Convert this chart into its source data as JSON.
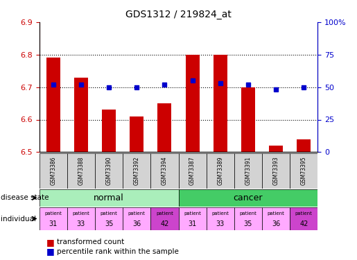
{
  "title": "GDS1312 / 219824_at",
  "samples": [
    "GSM73386",
    "GSM73388",
    "GSM73390",
    "GSM73392",
    "GSM73394",
    "GSM73387",
    "GSM73389",
    "GSM73391",
    "GSM73393",
    "GSM73395"
  ],
  "transformed_count": [
    6.79,
    6.73,
    6.63,
    6.61,
    6.65,
    6.8,
    6.8,
    6.7,
    6.52,
    6.54
  ],
  "percentile_rank": [
    52,
    52,
    50,
    50,
    52,
    55,
    53,
    52,
    48,
    50
  ],
  "ylim": [
    6.5,
    6.9
  ],
  "yticks_left": [
    6.5,
    6.6,
    6.7,
    6.8,
    6.9
  ],
  "yticks_right": [
    0,
    25,
    50,
    75,
    100
  ],
  "bar_color": "#cc0000",
  "dot_color": "#0000cc",
  "individuals": [
    31,
    33,
    35,
    36,
    42,
    31,
    33,
    35,
    36,
    42
  ],
  "normal_color": "#aaeebb",
  "cancer_color": "#44cc66",
  "ind_colors": [
    "#ffaaff",
    "#ffaaff",
    "#ffaaff",
    "#ffaaff",
    "#cc44cc",
    "#ffaaff",
    "#ffaaff",
    "#ffaaff",
    "#ffaaff",
    "#cc44cc"
  ],
  "bar_width": 0.5
}
